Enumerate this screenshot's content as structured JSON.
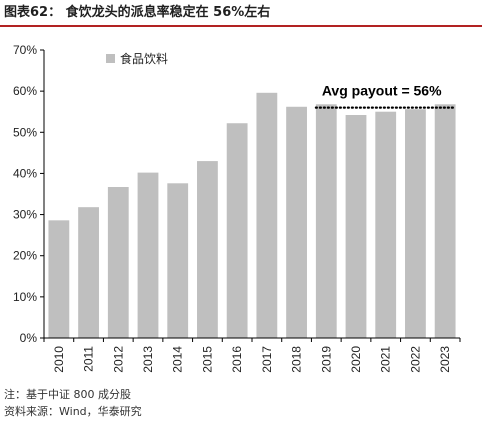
{
  "figure": {
    "title": "图表62：  食饮龙头的派息率稳定在 56%左右",
    "note": "注：基于中证 800 成分股",
    "source": "资料来源：Wind，华泰研究"
  },
  "chart_data": {
    "type": "bar",
    "categories": [
      "2010",
      "2011",
      "2012",
      "2013",
      "2014",
      "2015",
      "2016",
      "2017",
      "2018",
      "2019",
      "2020",
      "2021",
      "2022",
      "2023"
    ],
    "series": [
      {
        "name": "食品饮料",
        "values": [
          28.6,
          31.8,
          36.7,
          40.2,
          37.6,
          43.0,
          52.2,
          59.6,
          56.2,
          56.8,
          54.2,
          55.0,
          55.6,
          56.8
        ]
      }
    ],
    "ylim": [
      0,
      70
    ],
    "yticks": [
      "0%",
      "10%",
      "20%",
      "30%",
      "40%",
      "50%",
      "60%",
      "70%"
    ],
    "ytick_values": [
      0,
      10,
      20,
      30,
      40,
      50,
      60,
      70
    ],
    "legend_position": "top-left",
    "grid": false,
    "annotation": {
      "text": "Avg payout = 56%",
      "value": 56,
      "from_category": "2019",
      "to_category": "2023"
    },
    "colors": {
      "bar": "#bfbfbf",
      "axis": "#000000",
      "avg_line": "#000000"
    }
  }
}
